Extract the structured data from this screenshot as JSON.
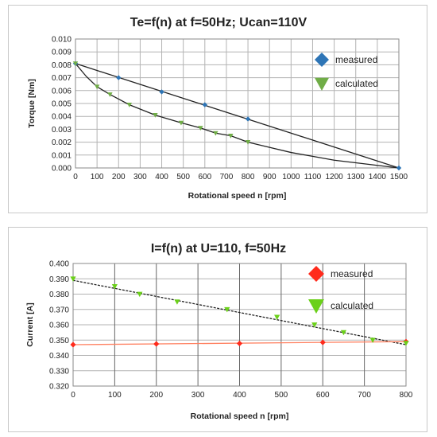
{
  "chart_data": [
    {
      "type": "scatter",
      "title": "Te=f(n) at f=50Hz; Ucan=110V",
      "xlabel": "Rotational speed n [rpm]",
      "ylabel": "Torque [Nm]",
      "xlim": [
        0,
        1500
      ],
      "ylim": [
        0,
        0.01
      ],
      "x_ticks": [
        "0",
        "100",
        "200",
        "300",
        "400",
        "500",
        "600",
        "700",
        "800",
        "900",
        "1000",
        "1100",
        "1200",
        "1300",
        "1400",
        "1500"
      ],
      "y_ticks": [
        "0.000",
        "0.001",
        "0.002",
        "0.003",
        "0.004",
        "0.005",
        "0.006",
        "0.007",
        "0.008",
        "0.009",
        "0.010"
      ],
      "legend_position": "right",
      "series": [
        {
          "name": "measured",
          "marker": "diamond",
          "color": "#2e75b6",
          "points": [
            [
              0,
              0.0081
            ],
            [
              200,
              0.007
            ],
            [
              400,
              0.0059
            ],
            [
              600,
              0.0049
            ],
            [
              800,
              0.0038
            ],
            [
              1500,
              0.0
            ]
          ]
        },
        {
          "name": "calculated",
          "marker": "triangle-down",
          "color": "#70ad47",
          "points": [
            [
              0,
              0.0081
            ],
            [
              100,
              0.0063
            ],
            [
              160,
              0.0057
            ],
            [
              250,
              0.0049
            ],
            [
              370,
              0.0041
            ],
            [
              490,
              0.0035
            ],
            [
              580,
              0.0031
            ],
            [
              650,
              0.0027
            ],
            [
              720,
              0.0025
            ],
            [
              800,
              0.002
            ]
          ]
        }
      ],
      "lines": [
        {
          "points": [
            [
              0,
              0.0081
            ],
            [
              1500,
              0.0
            ]
          ],
          "color": "#222222"
        },
        {
          "points": [
            [
              0,
              0.0081
            ],
            [
              50,
              0.0071
            ],
            [
              100,
              0.0063
            ],
            [
              160,
              0.0057
            ],
            [
              250,
              0.0049
            ],
            [
              370,
              0.0041
            ],
            [
              490,
              0.0035
            ],
            [
              580,
              0.0031
            ],
            [
              650,
              0.0027
            ],
            [
              720,
              0.0025
            ],
            [
              800,
              0.002
            ],
            [
              900,
              0.0016
            ],
            [
              1000,
              0.0012
            ],
            [
              1100,
              0.0009
            ],
            [
              1200,
              0.0006
            ],
            [
              1300,
              0.0004
            ],
            [
              1400,
              0.0002
            ],
            [
              1500,
              0.0
            ]
          ],
          "color": "#222222"
        }
      ]
    },
    {
      "type": "scatter",
      "title": "I=f(n) at U=110, f=50Hz",
      "xlabel": "Rotational speed n [rpm]",
      "ylabel": "Current [A]",
      "xlim": [
        0,
        800
      ],
      "ylim": [
        0.32,
        0.4
      ],
      "x_ticks": [
        "0",
        "100",
        "200",
        "300",
        "400",
        "500",
        "600",
        "700",
        "800"
      ],
      "y_ticks": [
        "0.320",
        "0.330",
        "0.340",
        "0.350",
        "0.360",
        "0.370",
        "0.380",
        "0.390",
        "0.400"
      ],
      "legend_position": "right",
      "series": [
        {
          "name": "measured",
          "marker": "diamond",
          "color": "#ff2b1c",
          "points": [
            [
              0,
              0.347
            ],
            [
              200,
              0.3475
            ],
            [
              400,
              0.3478
            ],
            [
              600,
              0.3485
            ],
            [
              800,
              0.349
            ]
          ]
        },
        {
          "name": "calculated",
          "marker": "triangle-down",
          "color": "#6bd01a",
          "points": [
            [
              0,
              0.39
            ],
            [
              100,
              0.385
            ],
            [
              160,
              0.38
            ],
            [
              250,
              0.375
            ],
            [
              370,
              0.37
            ],
            [
              490,
              0.365
            ],
            [
              580,
              0.36
            ],
            [
              650,
              0.355
            ],
            [
              720,
              0.35
            ],
            [
              800,
              0.348
            ]
          ]
        }
      ],
      "lines": [
        {
          "points": [
            [
              0,
              0.389
            ],
            [
              800,
              0.347
            ]
          ],
          "color": "#222222",
          "dash": true
        },
        {
          "points": [
            [
              0,
              0.347
            ],
            [
              800,
              0.349
            ]
          ],
          "color": "#ff8060"
        }
      ]
    }
  ]
}
